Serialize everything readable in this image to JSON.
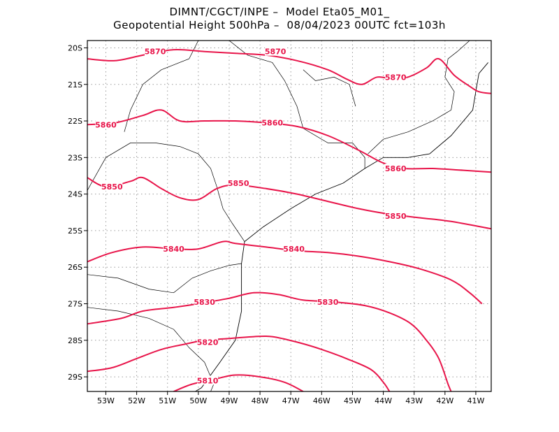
{
  "header": {
    "line1": "DIMNT/CGCT/INPE –  Model Eta05_M01_",
    "line2": "Geopotential Height 500hPa –  08/04/2023 00UTC fct=103h"
  },
  "colors": {
    "contour": "#e8154a",
    "coast": "#000000",
    "grid": "#9a9a9a",
    "frame": "#000000"
  },
  "axes": {
    "x_ticks": [
      {
        "value": -53,
        "label": "53W"
      },
      {
        "value": -52,
        "label": "52W"
      },
      {
        "value": -51,
        "label": "51W"
      },
      {
        "value": -50,
        "label": "50W"
      },
      {
        "value": -49,
        "label": "49W"
      },
      {
        "value": -48,
        "label": "48W"
      },
      {
        "value": -47,
        "label": "47W"
      },
      {
        "value": -46,
        "label": "46W"
      },
      {
        "value": -45,
        "label": "45W"
      },
      {
        "value": -44,
        "label": "44W"
      },
      {
        "value": -43,
        "label": "43W"
      },
      {
        "value": -42,
        "label": "42W"
      },
      {
        "value": -41,
        "label": "41W"
      }
    ],
    "y_ticks": [
      {
        "value": -20,
        "label": "20S"
      },
      {
        "value": -21,
        "label": "21S"
      },
      {
        "value": -22,
        "label": "22S"
      },
      {
        "value": -23,
        "label": "23S"
      },
      {
        "value": -24,
        "label": "24S"
      },
      {
        "value": -25,
        "label": "25S"
      },
      {
        "value": -26,
        "label": "26S"
      },
      {
        "value": -27,
        "label": "27S"
      },
      {
        "value": -28,
        "label": "28S"
      },
      {
        "value": -29,
        "label": "29S"
      }
    ],
    "xlim": [
      -53.6,
      -40.5
    ],
    "ylim": [
      -29.4,
      -19.8
    ]
  },
  "chart_data": {
    "type": "line",
    "x_unit": "longitude (deg)",
    "y_unit": "latitude (deg)",
    "series": [
      {
        "name": "5870",
        "points": [
          [
            -53.6,
            -20.3
          ],
          [
            -52.7,
            -20.35
          ],
          [
            -51.8,
            -20.2
          ],
          [
            -50.8,
            -20.05
          ],
          [
            -49.8,
            -20.1
          ],
          [
            -48.8,
            -20.15
          ],
          [
            -47.8,
            -20.2
          ],
          [
            -46.8,
            -20.35
          ],
          [
            -45.8,
            -20.6
          ],
          [
            -45.2,
            -20.85
          ],
          [
            -44.7,
            -21.0
          ],
          [
            -44.2,
            -20.8
          ],
          [
            -43.7,
            -20.85
          ],
          [
            -43.2,
            -20.8
          ],
          [
            -42.6,
            -20.55
          ],
          [
            -42.2,
            -20.3
          ],
          [
            -41.7,
            -20.75
          ],
          [
            -41.2,
            -21.05
          ],
          [
            -40.9,
            -21.2
          ],
          [
            -40.5,
            -21.25
          ]
        ]
      },
      {
        "name": "5860",
        "points": [
          [
            -53.6,
            -22.1
          ],
          [
            -52.7,
            -22.05
          ],
          [
            -51.8,
            -21.85
          ],
          [
            -51.2,
            -21.7
          ],
          [
            -50.6,
            -22.0
          ],
          [
            -49.8,
            -22.0
          ],
          [
            -48.8,
            -22.0
          ],
          [
            -47.8,
            -22.05
          ],
          [
            -46.8,
            -22.15
          ],
          [
            -45.8,
            -22.4
          ],
          [
            -44.8,
            -22.8
          ],
          [
            -44.0,
            -23.15
          ],
          [
            -43.3,
            -23.3
          ],
          [
            -42.4,
            -23.3
          ],
          [
            -41.4,
            -23.35
          ],
          [
            -40.5,
            -23.4
          ]
        ]
      },
      {
        "name": "5850",
        "points": [
          [
            -53.6,
            -23.55
          ],
          [
            -53.0,
            -23.8
          ],
          [
            -52.2,
            -23.65
          ],
          [
            -51.8,
            -23.55
          ],
          [
            -51.2,
            -23.85
          ],
          [
            -50.6,
            -24.1
          ],
          [
            -50.0,
            -24.15
          ],
          [
            -49.4,
            -23.85
          ],
          [
            -48.8,
            -23.75
          ],
          [
            -47.8,
            -23.85
          ],
          [
            -46.8,
            -24.0
          ],
          [
            -45.8,
            -24.2
          ],
          [
            -44.8,
            -24.4
          ],
          [
            -43.8,
            -24.55
          ],
          [
            -42.8,
            -24.65
          ],
          [
            -41.8,
            -24.75
          ],
          [
            -40.5,
            -24.95
          ]
        ]
      },
      {
        "name": "5840",
        "points": [
          [
            -53.6,
            -25.85
          ],
          [
            -52.8,
            -25.6
          ],
          [
            -51.8,
            -25.45
          ],
          [
            -50.8,
            -25.5
          ],
          [
            -50.0,
            -25.5
          ],
          [
            -49.2,
            -25.3
          ],
          [
            -48.8,
            -25.35
          ],
          [
            -47.8,
            -25.45
          ],
          [
            -46.8,
            -25.55
          ],
          [
            -45.8,
            -25.6
          ],
          [
            -44.8,
            -25.7
          ],
          [
            -43.8,
            -25.85
          ],
          [
            -42.8,
            -26.05
          ],
          [
            -41.8,
            -26.35
          ],
          [
            -41.2,
            -26.7
          ],
          [
            -40.8,
            -27.0
          ]
        ]
      },
      {
        "name": "5830",
        "points": [
          [
            -53.6,
            -27.55
          ],
          [
            -52.5,
            -27.4
          ],
          [
            -51.8,
            -27.2
          ],
          [
            -50.8,
            -27.1
          ],
          [
            -50.0,
            -27.0
          ],
          [
            -49.0,
            -26.85
          ],
          [
            -48.2,
            -26.7
          ],
          [
            -47.4,
            -26.75
          ],
          [
            -46.6,
            -26.9
          ],
          [
            -45.6,
            -26.95
          ],
          [
            -44.6,
            -27.05
          ],
          [
            -43.8,
            -27.25
          ],
          [
            -43.1,
            -27.55
          ],
          [
            -42.6,
            -28.0
          ],
          [
            -42.2,
            -28.5
          ],
          [
            -41.9,
            -29.2
          ],
          [
            -41.8,
            -29.4
          ]
        ]
      },
      {
        "name": "5820",
        "points": [
          [
            -53.6,
            -28.85
          ],
          [
            -52.8,
            -28.75
          ],
          [
            -52.0,
            -28.5
          ],
          [
            -51.2,
            -28.25
          ],
          [
            -50.4,
            -28.1
          ],
          [
            -49.8,
            -28.0
          ],
          [
            -49.0,
            -27.95
          ],
          [
            -48.2,
            -27.9
          ],
          [
            -47.6,
            -27.9
          ],
          [
            -46.8,
            -28.05
          ],
          [
            -46.0,
            -28.25
          ],
          [
            -45.2,
            -28.5
          ],
          [
            -44.4,
            -28.8
          ],
          [
            -44.0,
            -29.15
          ],
          [
            -43.8,
            -29.4
          ]
        ]
      },
      {
        "name": "5810",
        "points": [
          [
            -50.8,
            -29.4
          ],
          [
            -50.2,
            -29.2
          ],
          [
            -49.4,
            -29.05
          ],
          [
            -48.8,
            -28.95
          ],
          [
            -48.0,
            -29.0
          ],
          [
            -47.2,
            -29.15
          ],
          [
            -46.6,
            -29.4
          ]
        ]
      }
    ],
    "labels": [
      {
        "text": "5870",
        "lon": -51.4,
        "lat": -20.1
      },
      {
        "text": "5870",
        "lon": -47.5,
        "lat": -20.1
      },
      {
        "text": "5870",
        "lon": -43.6,
        "lat": -20.8
      },
      {
        "text": "5860",
        "lon": -53.0,
        "lat": -22.1
      },
      {
        "text": "5860",
        "lon": -47.6,
        "lat": -22.05
      },
      {
        "text": "5860",
        "lon": -43.6,
        "lat": -23.3
      },
      {
        "text": "5850",
        "lon": -52.8,
        "lat": -23.8
      },
      {
        "text": "5850",
        "lon": -48.7,
        "lat": -23.7
      },
      {
        "text": "5850",
        "lon": -43.6,
        "lat": -24.6
      },
      {
        "text": "5840",
        "lon": -50.8,
        "lat": -25.5
      },
      {
        "text": "5840",
        "lon": -46.9,
        "lat": -25.5
      },
      {
        "text": "5830",
        "lon": -49.8,
        "lat": -26.95
      },
      {
        "text": "5830",
        "lon": -45.8,
        "lat": -26.95
      },
      {
        "text": "5820",
        "lon": -49.7,
        "lat": -28.05
      },
      {
        "text": "5810",
        "lon": -49.7,
        "lat": -29.1
      }
    ],
    "coastline": [
      [
        -40.6,
        -20.4
      ],
      [
        -40.9,
        -20.7
      ],
      [
        -41.0,
        -21.2
      ],
      [
        -41.1,
        -21.7
      ],
      [
        -41.8,
        -22.4
      ],
      [
        -42.5,
        -22.9
      ],
      [
        -43.2,
        -23.0
      ],
      [
        -44.0,
        -23.0
      ],
      [
        -44.6,
        -23.3
      ],
      [
        -45.3,
        -23.7
      ],
      [
        -46.2,
        -24.0
      ],
      [
        -47.0,
        -24.4
      ],
      [
        -47.9,
        -24.9
      ],
      [
        -48.5,
        -25.3
      ],
      [
        -48.6,
        -25.9
      ],
      [
        -48.6,
        -26.6
      ],
      [
        -48.6,
        -27.2
      ],
      [
        -48.8,
        -28.0
      ],
      [
        -49.3,
        -28.6
      ],
      [
        -49.9,
        -29.3
      ],
      [
        -50.1,
        -29.4
      ]
    ],
    "borders": [
      [
        [
          -53.6,
          -23.9
        ],
        [
          -53.0,
          -23.0
        ],
        [
          -52.2,
          -22.6
        ],
        [
          -51.4,
          -22.6
        ],
        [
          -50.6,
          -22.7
        ],
        [
          -50.0,
          -22.9
        ],
        [
          -49.6,
          -23.3
        ],
        [
          -49.4,
          -23.8
        ],
        [
          -49.2,
          -24.4
        ],
        [
          -48.9,
          -24.8
        ],
        [
          -48.5,
          -25.3
        ]
      ],
      [
        [
          -53.6,
          -26.2
        ],
        [
          -52.6,
          -26.3
        ],
        [
          -51.6,
          -26.6
        ],
        [
          -50.8,
          -26.7
        ],
        [
          -50.2,
          -26.3
        ],
        [
          -49.6,
          -26.1
        ],
        [
          -49.0,
          -25.95
        ],
        [
          -48.6,
          -25.9
        ]
      ],
      [
        [
          -53.6,
          -27.1
        ],
        [
          -52.6,
          -27.2
        ],
        [
          -51.6,
          -27.4
        ],
        [
          -50.8,
          -27.7
        ],
        [
          -50.3,
          -28.2
        ],
        [
          -49.8,
          -28.6
        ],
        [
          -49.5,
          -29.2
        ],
        [
          -49.6,
          -29.4
        ]
      ],
      [
        [
          -50.0,
          -19.8
        ],
        [
          -50.3,
          -20.3
        ],
        [
          -51.2,
          -20.6
        ],
        [
          -51.8,
          -21.0
        ],
        [
          -52.2,
          -21.7
        ],
        [
          -52.4,
          -22.3
        ]
      ],
      [
        [
          -49.0,
          -19.8
        ],
        [
          -48.4,
          -20.2
        ],
        [
          -47.6,
          -20.4
        ],
        [
          -47.2,
          -20.9
        ],
        [
          -46.8,
          -21.6
        ],
        [
          -46.6,
          -22.2
        ],
        [
          -45.8,
          -22.6
        ],
        [
          -45.0,
          -22.6
        ],
        [
          -44.6,
          -23.0
        ],
        [
          -44.6,
          -23.3
        ]
      ],
      [
        [
          -44.5,
          -22.9
        ],
        [
          -44.0,
          -22.5
        ],
        [
          -43.2,
          -22.3
        ],
        [
          -42.4,
          -22.0
        ],
        [
          -41.8,
          -21.7
        ],
        [
          -41.7,
          -21.2
        ],
        [
          -42.0,
          -20.8
        ],
        [
          -41.9,
          -20.3
        ],
        [
          -41.6,
          -20.1
        ],
        [
          -41.2,
          -19.8
        ]
      ],
      [
        [
          -46.6,
          -20.6
        ],
        [
          -46.2,
          -20.9
        ],
        [
          -45.6,
          -20.8
        ],
        [
          -45.1,
          -21.0
        ],
        [
          -44.9,
          -21.6
        ]
      ]
    ]
  }
}
